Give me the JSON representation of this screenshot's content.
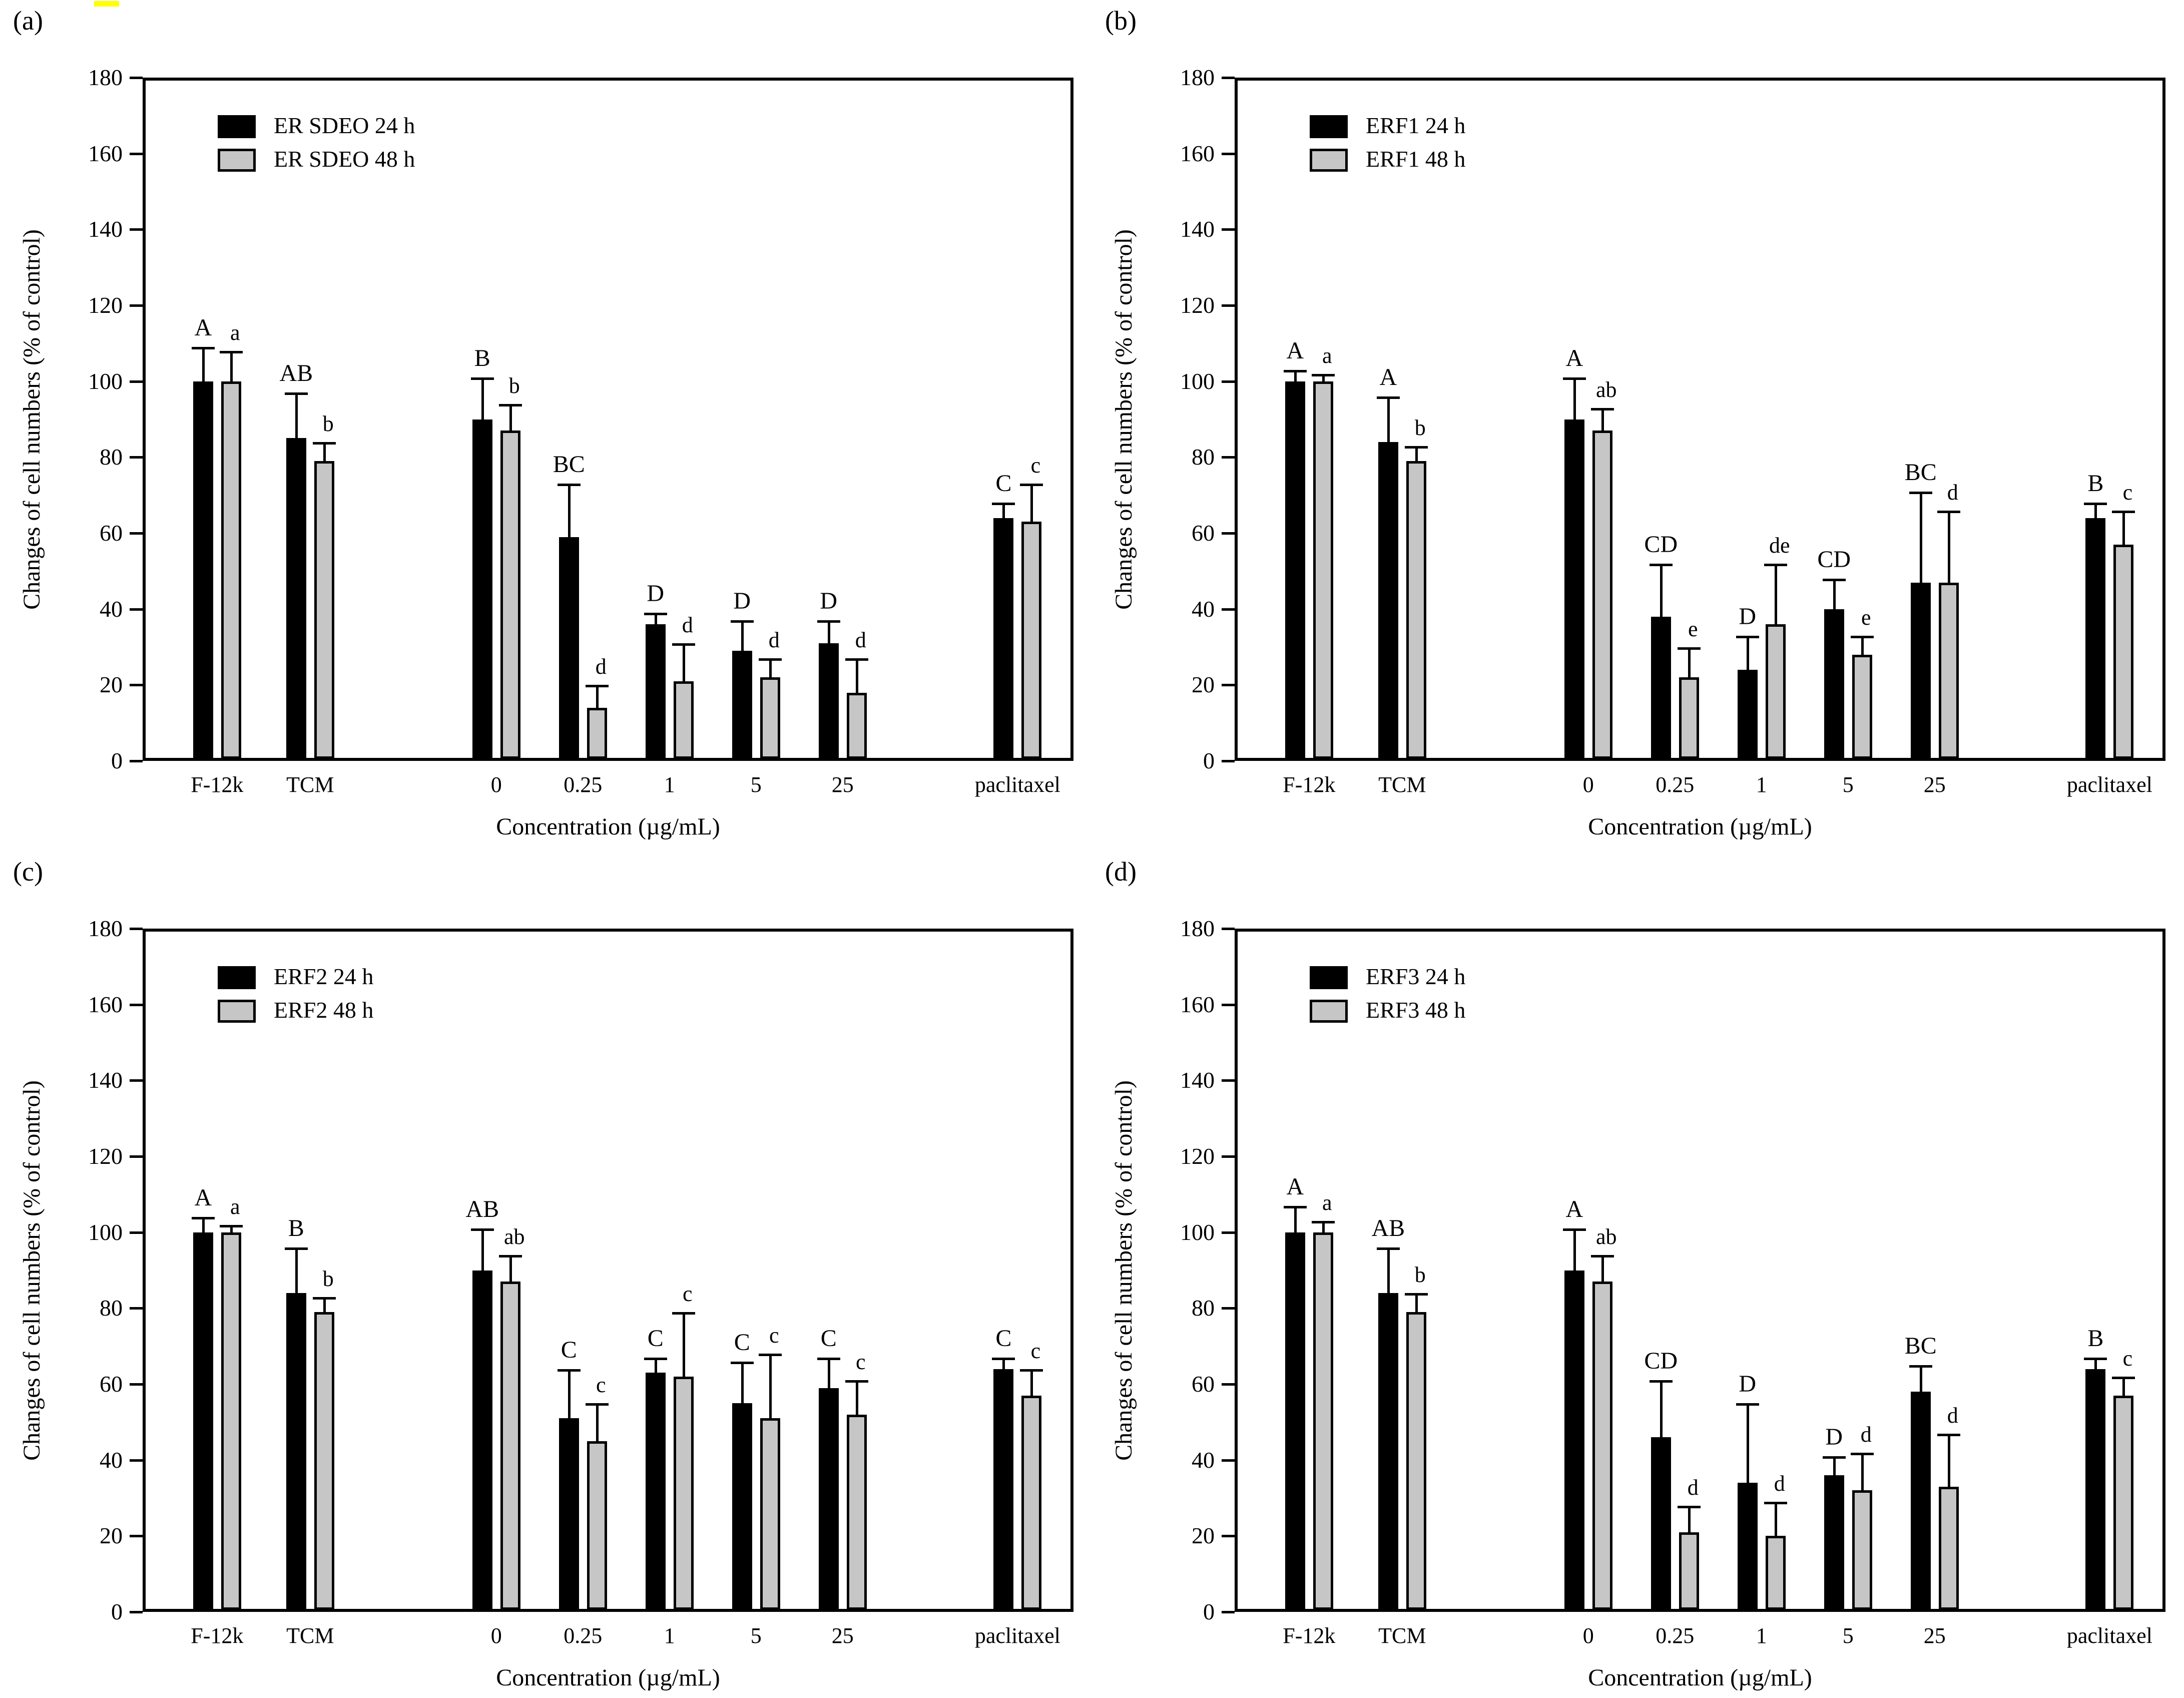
{
  "figure": {
    "background": "#ffffff",
    "highlight_marker_color": "#ffff00",
    "black_series_color": "#000000",
    "gray_series_color": "#c6c6c6",
    "axis_color": "#000000"
  },
  "axis": {
    "ylabel": "Changes of cell numbers (% of control)",
    "xlabel": "Concentration (µg/mL)",
    "ylim": [
      0,
      180
    ],
    "ytick_step": 20,
    "yticks": [
      0,
      20,
      40,
      60,
      80,
      100,
      120,
      140,
      160,
      180
    ],
    "categories": [
      "F-12k",
      "TCM",
      "0",
      "0.25",
      "1",
      "5",
      "25",
      "paclitaxel"
    ]
  },
  "chart_data": [
    {
      "id": "a",
      "panel_label": "(a)",
      "type": "bar",
      "title": "",
      "xlabel": "Concentration (µg/mL)",
      "ylabel": "Changes of cell numbers (% of control)",
      "ylim": [
        0,
        180
      ],
      "grid": false,
      "legend_position": "upper-left-inside",
      "categories": [
        "F-12k",
        "TCM",
        "0",
        "0.25",
        "1",
        "5",
        "25",
        "paclitaxel"
      ],
      "series": [
        {
          "name": "ER SDEO 24 h",
          "color": "#000000",
          "values": [
            100,
            85,
            90,
            59,
            36,
            29,
            31,
            64
          ],
          "errors": [
            9,
            12,
            11,
            14,
            3,
            8,
            6,
            4
          ],
          "letters": [
            "A",
            "AB",
            "B",
            "BC",
            "D",
            "D",
            "D",
            "C"
          ]
        },
        {
          "name": "ER SDEO 48 h",
          "color": "#c6c6c6",
          "values": [
            100,
            79,
            87,
            14,
            21,
            22,
            18,
            63
          ],
          "errors": [
            8,
            5,
            7,
            6,
            10,
            5,
            9,
            10
          ],
          "letters": [
            "a",
            "b",
            "b",
            "d",
            "d",
            "d",
            "d",
            "c"
          ]
        }
      ]
    },
    {
      "id": "b",
      "panel_label": "(b)",
      "type": "bar",
      "title": "",
      "xlabel": "Concentration (µg/mL)",
      "ylabel": "Changes of cell numbers (% of control)",
      "ylim": [
        0,
        180
      ],
      "grid": false,
      "legend_position": "upper-left-inside",
      "categories": [
        "F-12k",
        "TCM",
        "0",
        "0.25",
        "1",
        "5",
        "25",
        "paclitaxel"
      ],
      "series": [
        {
          "name": "ERF1 24 h",
          "color": "#000000",
          "values": [
            100,
            84,
            90,
            38,
            24,
            40,
            47,
            64
          ],
          "errors": [
            3,
            12,
            11,
            14,
            9,
            8,
            24,
            4
          ],
          "letters": [
            "A",
            "A",
            "A",
            "CD",
            "D",
            "CD",
            "BC",
            "B"
          ]
        },
        {
          "name": "ERF1 48 h",
          "color": "#c6c6c6",
          "values": [
            100,
            79,
            87,
            22,
            36,
            28,
            47,
            57
          ],
          "errors": [
            2,
            4,
            6,
            8,
            16,
            5,
            19,
            9
          ],
          "letters": [
            "a",
            "b",
            "ab",
            "e",
            "de",
            "e",
            "d",
            "c"
          ]
        }
      ]
    },
    {
      "id": "c",
      "panel_label": "(c)",
      "type": "bar",
      "title": "",
      "xlabel": "Concentration (µg/mL)",
      "ylabel": "Changes of cell numbers (% of control)",
      "ylim": [
        0,
        180
      ],
      "grid": false,
      "legend_position": "upper-left-inside",
      "categories": [
        "F-12k",
        "TCM",
        "0",
        "0.25",
        "1",
        "5",
        "25",
        "paclitaxel"
      ],
      "series": [
        {
          "name": "ERF2 24 h",
          "color": "#000000",
          "values": [
            100,
            84,
            90,
            51,
            63,
            55,
            59,
            64
          ],
          "errors": [
            4,
            12,
            11,
            13,
            4,
            11,
            8,
            3
          ],
          "letters": [
            "A",
            "B",
            "AB",
            "C",
            "C",
            "C",
            "C",
            "C"
          ]
        },
        {
          "name": "ERF2 48 h",
          "color": "#c6c6c6",
          "values": [
            100,
            79,
            87,
            45,
            62,
            51,
            52,
            57
          ],
          "errors": [
            2,
            4,
            7,
            10,
            17,
            17,
            9,
            7
          ],
          "letters": [
            "a",
            "b",
            "ab",
            "c",
            "c",
            "c",
            "c",
            "c"
          ]
        }
      ]
    },
    {
      "id": "d",
      "panel_label": "(d)",
      "type": "bar",
      "title": "",
      "xlabel": "Concentration (µg/mL)",
      "ylabel": "Changes of cell numbers (% of control)",
      "ylim": [
        0,
        180
      ],
      "grid": false,
      "legend_position": "upper-left-inside",
      "categories": [
        "F-12k",
        "TCM",
        "0",
        "0.25",
        "1",
        "5",
        "25",
        "paclitaxel"
      ],
      "series": [
        {
          "name": "ERF3 24 h",
          "color": "#000000",
          "values": [
            100,
            84,
            90,
            46,
            34,
            36,
            58,
            64
          ],
          "errors": [
            7,
            12,
            11,
            15,
            21,
            5,
            7,
            3
          ],
          "letters": [
            "A",
            "AB",
            "A",
            "CD",
            "D",
            "D",
            "BC",
            "B"
          ]
        },
        {
          "name": "ERF3 48 h",
          "color": "#c6c6c6",
          "values": [
            100,
            79,
            87,
            21,
            20,
            32,
            33,
            57
          ],
          "errors": [
            3,
            5,
            7,
            7,
            9,
            10,
            14,
            5
          ],
          "letters": [
            "a",
            "b",
            "ab",
            "d",
            "d",
            "d",
            "d",
            "c"
          ]
        }
      ]
    }
  ]
}
